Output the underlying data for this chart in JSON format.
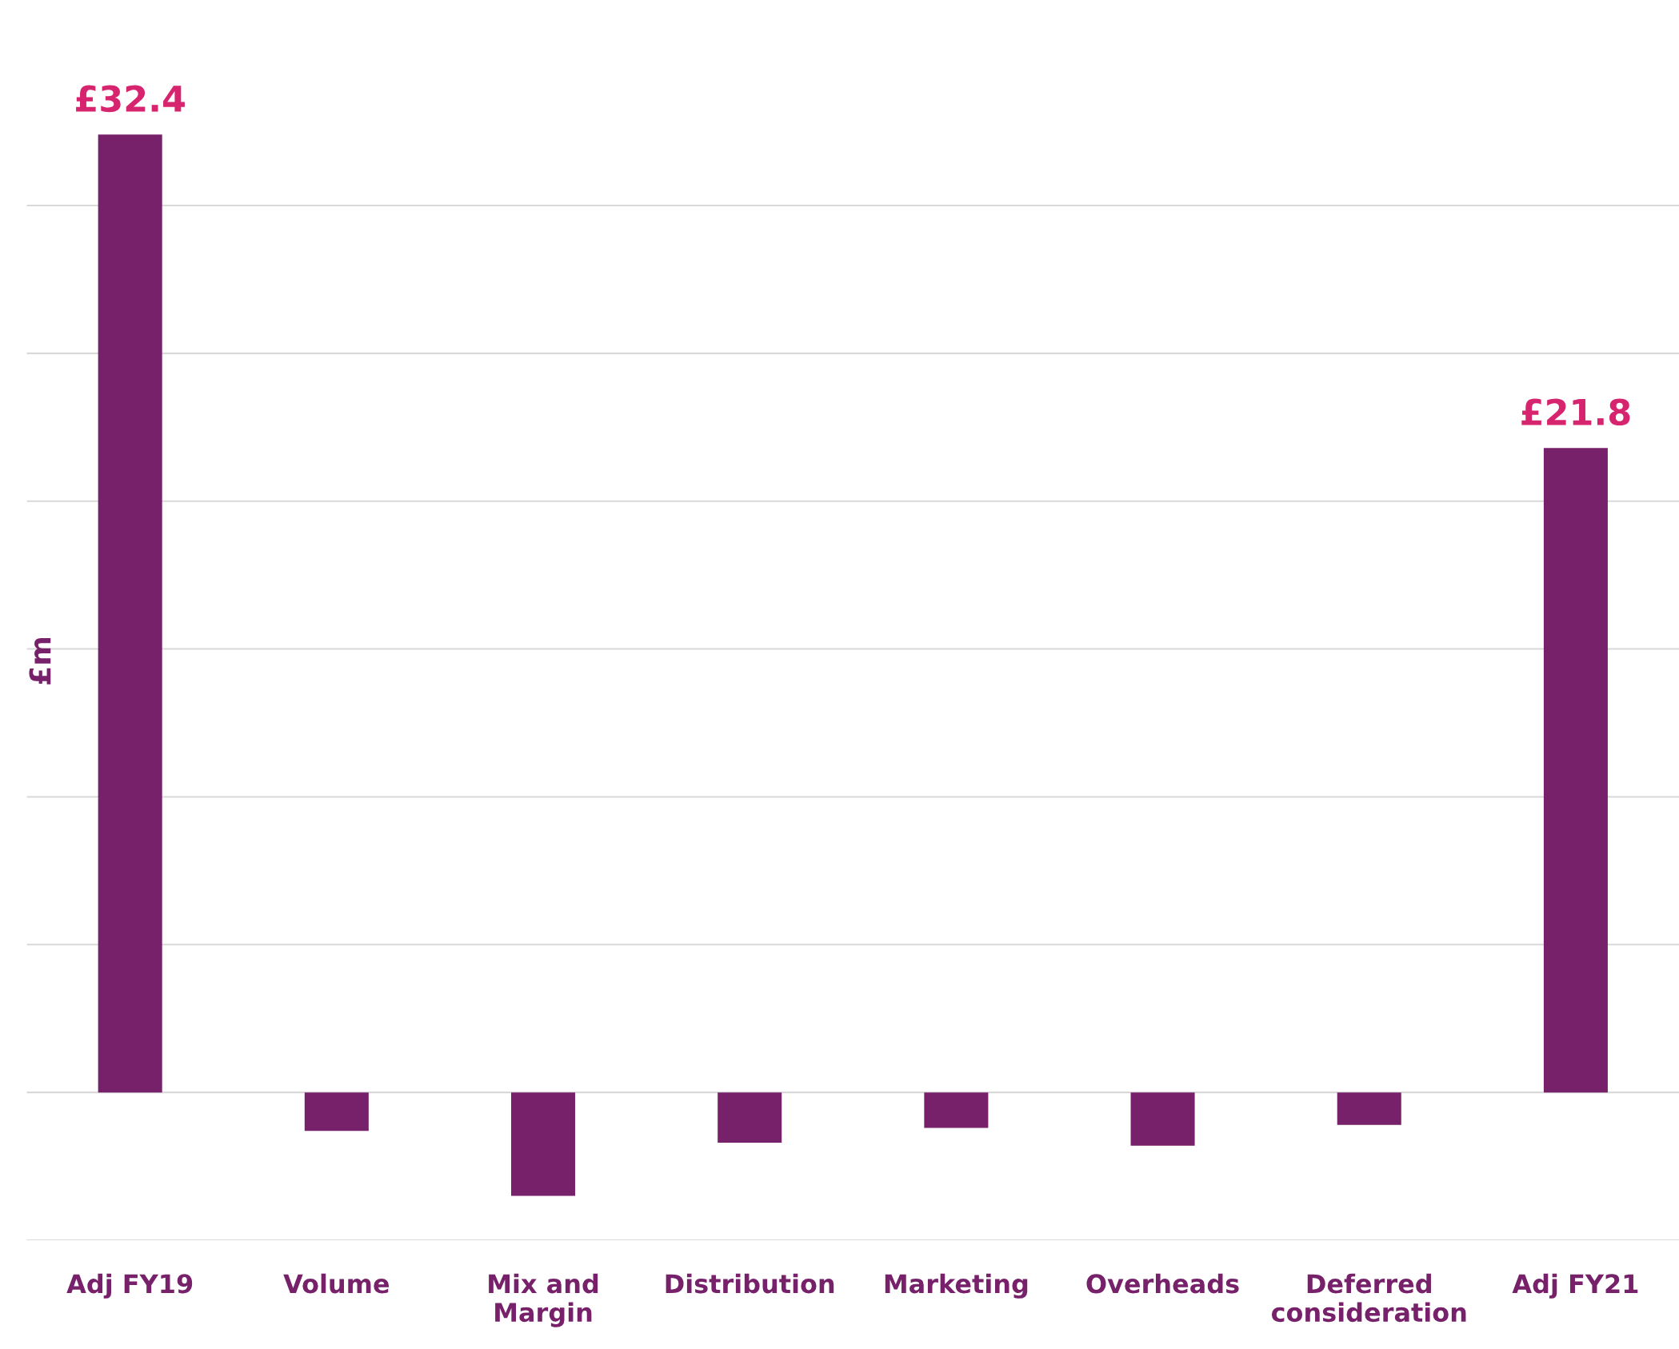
{
  "chart_data": {
    "type": "bar",
    "ylabel": "£m",
    "categories": [
      "Adj FY19",
      "Volume",
      "Mix and\nMargin",
      "Distribution",
      "Marketing",
      "Overheads",
      "Deferred\nconsideration",
      "Adj FY21"
    ],
    "values": [
      32.4,
      -1.3,
      -3.5,
      -1.7,
      -1.2,
      -1.8,
      -1.1,
      21.8
    ],
    "value_labels": [
      "£32.4",
      null,
      null,
      null,
      null,
      null,
      null,
      "£21.8"
    ],
    "color": "#76216a",
    "yticks": [
      {
        "value": -5,
        "label": null
      },
      {
        "value": 0,
        "label": null
      },
      {
        "value": 5,
        "label": null
      },
      {
        "value": 10,
        "label": null
      },
      {
        "value": 15,
        "label": null
      },
      {
        "value": 20,
        "label": null
      },
      {
        "value": 25,
        "label": null
      },
      {
        "value": 30,
        "label": null
      }
    ],
    "grid": "y"
  }
}
